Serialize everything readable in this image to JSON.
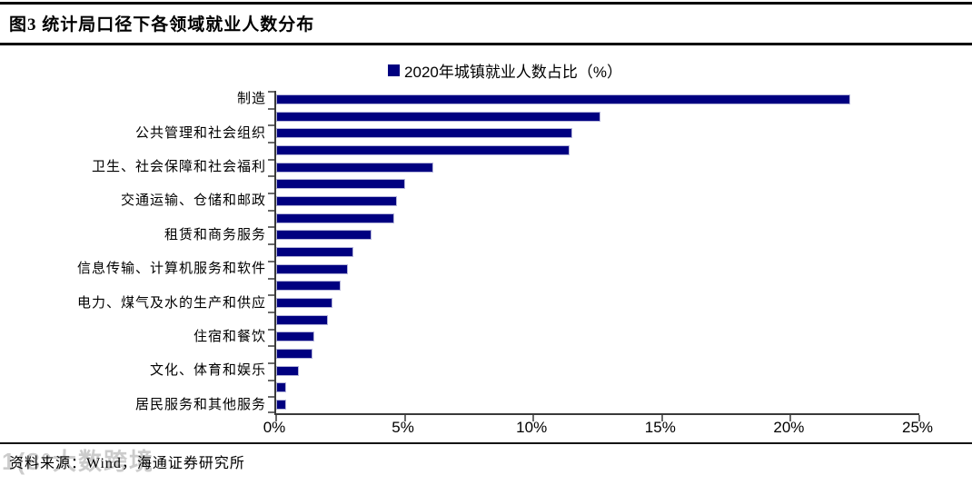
{
  "header": {
    "title": "图3  统计局口径下各领域就业人数分布"
  },
  "legend": {
    "label": "2020年城镇就业人数占比（%）",
    "marker_color": "#000080"
  },
  "chart_data": {
    "type": "bar",
    "orientation": "horizontal",
    "title": "图3  统计局口径下各领域就业人数分布",
    "series_name": "2020年城镇就业人数占比（%）",
    "categories": [
      "制造",
      "",
      "公共管理和社会组织",
      "",
      "卫生、社会保障和社会福利",
      "",
      "交通运输、仓储和邮政",
      "",
      "租赁和商务服务",
      "",
      "信息传输、计算机服务和软件",
      "",
      "电力、煤气及水的生产和供应",
      "",
      "住宿和餐饮",
      "",
      "文化、体育和娱乐",
      "",
      "居民服务和其他服务"
    ],
    "values": [
      22.3,
      12.6,
      11.5,
      11.4,
      6.1,
      5.0,
      4.7,
      4.6,
      3.7,
      3.0,
      2.8,
      2.5,
      2.2,
      2.0,
      1.5,
      1.4,
      0.9,
      0.4,
      0.4
    ],
    "xlim": [
      0,
      25
    ],
    "x_tick_labels": [
      "0%",
      "5%",
      "10%",
      "15%",
      "20%",
      "25%"
    ],
    "bar_color": "#000080",
    "grid": false,
    "legend_position": "top",
    "note": "only every other category is labeled on the axis"
  },
  "footer": {
    "source": "资料来源：Wind，海通证券研究所"
  },
  "watermark": {
    "text": "1(8°大数跨境"
  }
}
